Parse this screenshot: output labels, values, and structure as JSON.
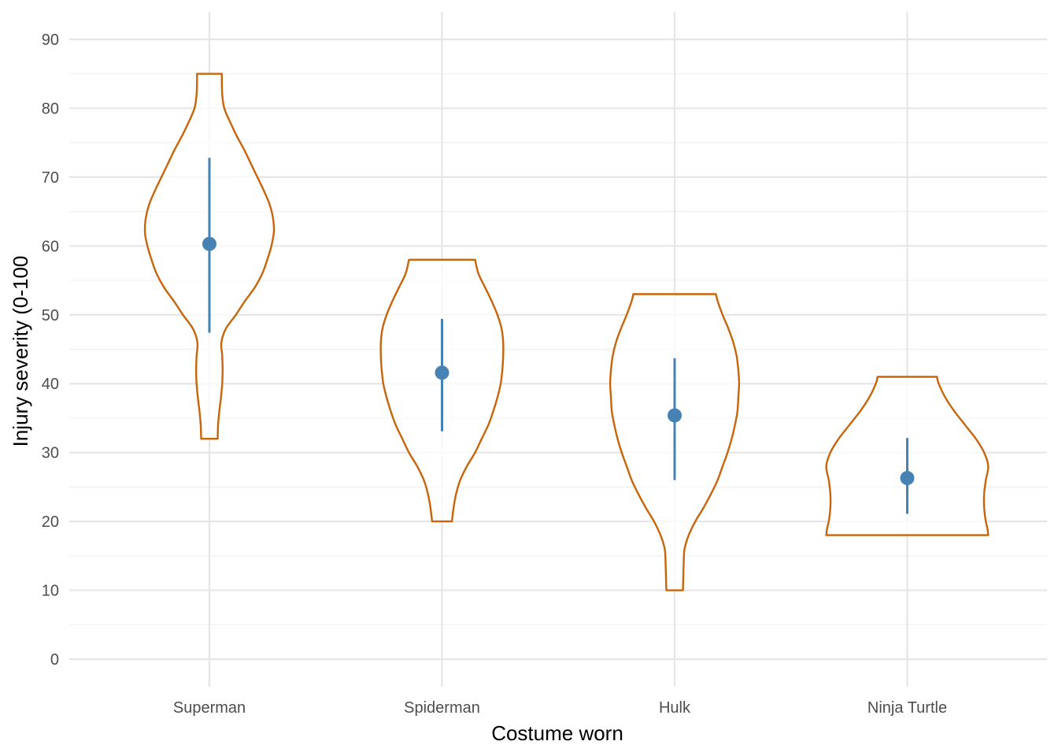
{
  "chart_data": {
    "type": "violin",
    "xlabel": "Costume worn",
    "ylabel": "Injury severity (0-100",
    "ylim": [
      -4,
      94
    ],
    "yticks": [
      0,
      10,
      20,
      30,
      40,
      50,
      60,
      70,
      80,
      90
    ],
    "ytick_labels": [
      "0",
      "10",
      "20",
      "30",
      "40",
      "50",
      "60",
      "70",
      "80",
      "90"
    ],
    "categories": [
      "Superman",
      "Spiderman",
      "Hulk",
      "Ninja Turtle"
    ],
    "grid": true,
    "legend": "none",
    "colors": {
      "violin": "#c8650a",
      "point": "#4682b4",
      "grid": "#e6e6e6",
      "grid_minor": "#f0f0f0"
    },
    "violins": [
      {
        "category": "Superman",
        "ymin": 32,
        "ymax": 85,
        "profile": [
          [
            32,
            0.1
          ],
          [
            34,
            0.105
          ],
          [
            36,
            0.12
          ],
          [
            38,
            0.14
          ],
          [
            40,
            0.155
          ],
          [
            42,
            0.16
          ],
          [
            44,
            0.155
          ],
          [
            46,
            0.145
          ],
          [
            48,
            0.2
          ],
          [
            50,
            0.32
          ],
          [
            52,
            0.43
          ],
          [
            54,
            0.55
          ],
          [
            56,
            0.64
          ],
          [
            58,
            0.7
          ],
          [
            60,
            0.75
          ],
          [
            62,
            0.78
          ],
          [
            64,
            0.77
          ],
          [
            66,
            0.73
          ],
          [
            68,
            0.66
          ],
          [
            70,
            0.58
          ],
          [
            72,
            0.5
          ],
          [
            74,
            0.42
          ],
          [
            76,
            0.33
          ],
          [
            78,
            0.25
          ],
          [
            80,
            0.18
          ],
          [
            82,
            0.155
          ],
          [
            84,
            0.15
          ],
          [
            85,
            0.15
          ]
        ],
        "mean": 60.3,
        "ci": [
          47.4,
          72.8
        ]
      },
      {
        "category": "Spiderman",
        "ymin": 20,
        "ymax": 58,
        "profile": [
          [
            20,
            0.12
          ],
          [
            22,
            0.14
          ],
          [
            24,
            0.17
          ],
          [
            26,
            0.22
          ],
          [
            28,
            0.3
          ],
          [
            30,
            0.4
          ],
          [
            32,
            0.48
          ],
          [
            34,
            0.56
          ],
          [
            36,
            0.62
          ],
          [
            38,
            0.67
          ],
          [
            40,
            0.71
          ],
          [
            42,
            0.73
          ],
          [
            44,
            0.74
          ],
          [
            46,
            0.74
          ],
          [
            48,
            0.72
          ],
          [
            50,
            0.67
          ],
          [
            52,
            0.6
          ],
          [
            54,
            0.52
          ],
          [
            56,
            0.44
          ],
          [
            58,
            0.4
          ]
        ],
        "mean": 41.6,
        "ci": [
          33.1,
          49.4
        ]
      },
      {
        "category": "Hulk",
        "ymin": 10,
        "ymax": 53,
        "profile": [
          [
            10,
            0.1
          ],
          [
            12,
            0.105
          ],
          [
            14,
            0.11
          ],
          [
            16,
            0.12
          ],
          [
            18,
            0.17
          ],
          [
            20,
            0.25
          ],
          [
            22,
            0.35
          ],
          [
            24,
            0.44
          ],
          [
            26,
            0.52
          ],
          [
            28,
            0.58
          ],
          [
            30,
            0.64
          ],
          [
            32,
            0.69
          ],
          [
            34,
            0.73
          ],
          [
            36,
            0.76
          ],
          [
            38,
            0.77
          ],
          [
            40,
            0.78
          ],
          [
            42,
            0.77
          ],
          [
            44,
            0.75
          ],
          [
            46,
            0.71
          ],
          [
            48,
            0.65
          ],
          [
            50,
            0.58
          ],
          [
            52,
            0.52
          ],
          [
            53,
            0.5
          ]
        ],
        "mean": 35.4,
        "ci": [
          26.0,
          43.7
        ]
      },
      {
        "category": "Ninja Turtle",
        "ymin": 18,
        "ymax": 41,
        "profile": [
          [
            18,
            0.98
          ],
          [
            19,
            0.97
          ],
          [
            20,
            0.95
          ],
          [
            22,
            0.93
          ],
          [
            24,
            0.93
          ],
          [
            26,
            0.95
          ],
          [
            28,
            0.98
          ],
          [
            30,
            0.93
          ],
          [
            32,
            0.83
          ],
          [
            34,
            0.7
          ],
          [
            36,
            0.57
          ],
          [
            38,
            0.46
          ],
          [
            40,
            0.38
          ],
          [
            41,
            0.36
          ]
        ],
        "mean": 26.3,
        "ci": [
          21.1,
          32.1
        ]
      }
    ]
  }
}
